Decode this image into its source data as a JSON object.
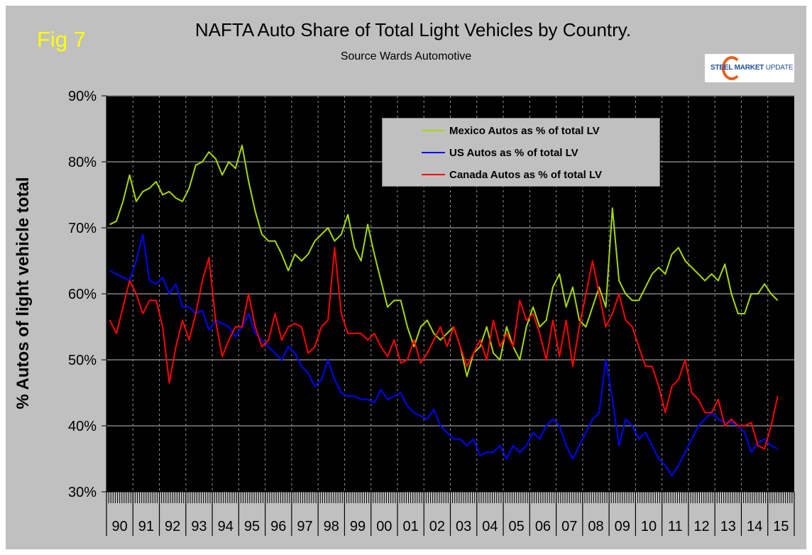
{
  "figure_label": "Fig 7",
  "logo": {
    "bold": "STEEL MARKET",
    "light": " UPDATE"
  },
  "chart_data": {
    "type": "line",
    "title": "NAFTA   Auto Share of Total Light Vehicles by Country.",
    "subtitle": "Source Wards Automotive",
    "xlabel": "",
    "ylabel": "% Autos of light vehicle total",
    "ylim": [
      30,
      90
    ],
    "yticks": [
      "30%",
      "40%",
      "50%",
      "60%",
      "70%",
      "80%",
      "90%"
    ],
    "ytick_values": [
      30,
      40,
      50,
      60,
      70,
      80,
      90
    ],
    "x_categories": [
      "90",
      "91",
      "92",
      "93",
      "94",
      "95",
      "96",
      "97",
      "98",
      "99",
      "00",
      "01",
      "02",
      "03",
      "04",
      "05",
      "06",
      "07",
      "08",
      "09",
      "10",
      "11",
      "12",
      "13",
      "14",
      "15"
    ],
    "x_resolution": "quarterly",
    "grid": "horizontal solid at y ticks, vertical dashed at year boundaries",
    "background": "#000000",
    "legend_position": "top-right",
    "series": [
      {
        "name": "Mexico Autos as % of total LV",
        "color": "#a8d800",
        "values": [
          70.5,
          71,
          74,
          78,
          74,
          75.5,
          76,
          77,
          75,
          75.5,
          74.5,
          74,
          76,
          79.5,
          80,
          81.5,
          80.5,
          78,
          80,
          79,
          82.5,
          77,
          72.5,
          69,
          68,
          68,
          66,
          63.5,
          66,
          65,
          66,
          68,
          69,
          70,
          68,
          69,
          72,
          67,
          65,
          70.5,
          66,
          62,
          58,
          59,
          59,
          55,
          52,
          55,
          56,
          54,
          53,
          54,
          55,
          52,
          47.5,
          51,
          52,
          55,
          51,
          50,
          55,
          52,
          50,
          55,
          58,
          55,
          56,
          61,
          63,
          58,
          61,
          56,
          55,
          58,
          61,
          58,
          73,
          62,
          60,
          59,
          59,
          61,
          63,
          64,
          63,
          66,
          67,
          65,
          64,
          63,
          62,
          63,
          62,
          64.5,
          60,
          57,
          57,
          60,
          60,
          61.5,
          60,
          59
        ]
      },
      {
        "name": "US Autos as % of total LV",
        "color": "#0000ff",
        "values": [
          63.5,
          63,
          62.5,
          62,
          65,
          69,
          62,
          61.5,
          62.5,
          60,
          61.5,
          58,
          58,
          57,
          57.5,
          54.5,
          56,
          55.5,
          55,
          53.5,
          55,
          57,
          54,
          53,
          52,
          51,
          50,
          52,
          51,
          49,
          48,
          46,
          47,
          50,
          47,
          45,
          44.5,
          44.5,
          44,
          44,
          43.5,
          45.5,
          44,
          44.5,
          45,
          43,
          42,
          41.5,
          41,
          42.5,
          40,
          39,
          38,
          38,
          37,
          38,
          35.5,
          36,
          36,
          37,
          35,
          37,
          36,
          37,
          39,
          38,
          40,
          41,
          40,
          37,
          35,
          37,
          39,
          41,
          42,
          50,
          44,
          37,
          41,
          40,
          38,
          39,
          37,
          35,
          34,
          32.5,
          34,
          36,
          38,
          40,
          41,
          42,
          41,
          40.5,
          40.5,
          40,
          39,
          36,
          37.5,
          38,
          37,
          36.5
        ]
      },
      {
        "name": "Canada Autos as % of total LV",
        "color": "#ff0000",
        "values": [
          56,
          54,
          58,
          62,
          60,
          57,
          59,
          59,
          55,
          46.5,
          52,
          56,
          53,
          57,
          62,
          65.5,
          56,
          50.5,
          53,
          55,
          55,
          60,
          55,
          52,
          53,
          57,
          53,
          55,
          55.5,
          55,
          51,
          52,
          55,
          56,
          67,
          57,
          54,
          54,
          54,
          53,
          54,
          52,
          50.5,
          53,
          49.5,
          50,
          53,
          49.5,
          51,
          53,
          55,
          52,
          55,
          52,
          49,
          51,
          53,
          50,
          56,
          52,
          54,
          52,
          59,
          56,
          57,
          54,
          50,
          56,
          50.5,
          56,
          49,
          55,
          60,
          65,
          60,
          55,
          57,
          60,
          56,
          55,
          52,
          49,
          49,
          46,
          42,
          46,
          47,
          50,
          45,
          44,
          42,
          42,
          44,
          40,
          41,
          40,
          40,
          40.5,
          37,
          36.5,
          40,
          44.5
        ]
      }
    ]
  }
}
